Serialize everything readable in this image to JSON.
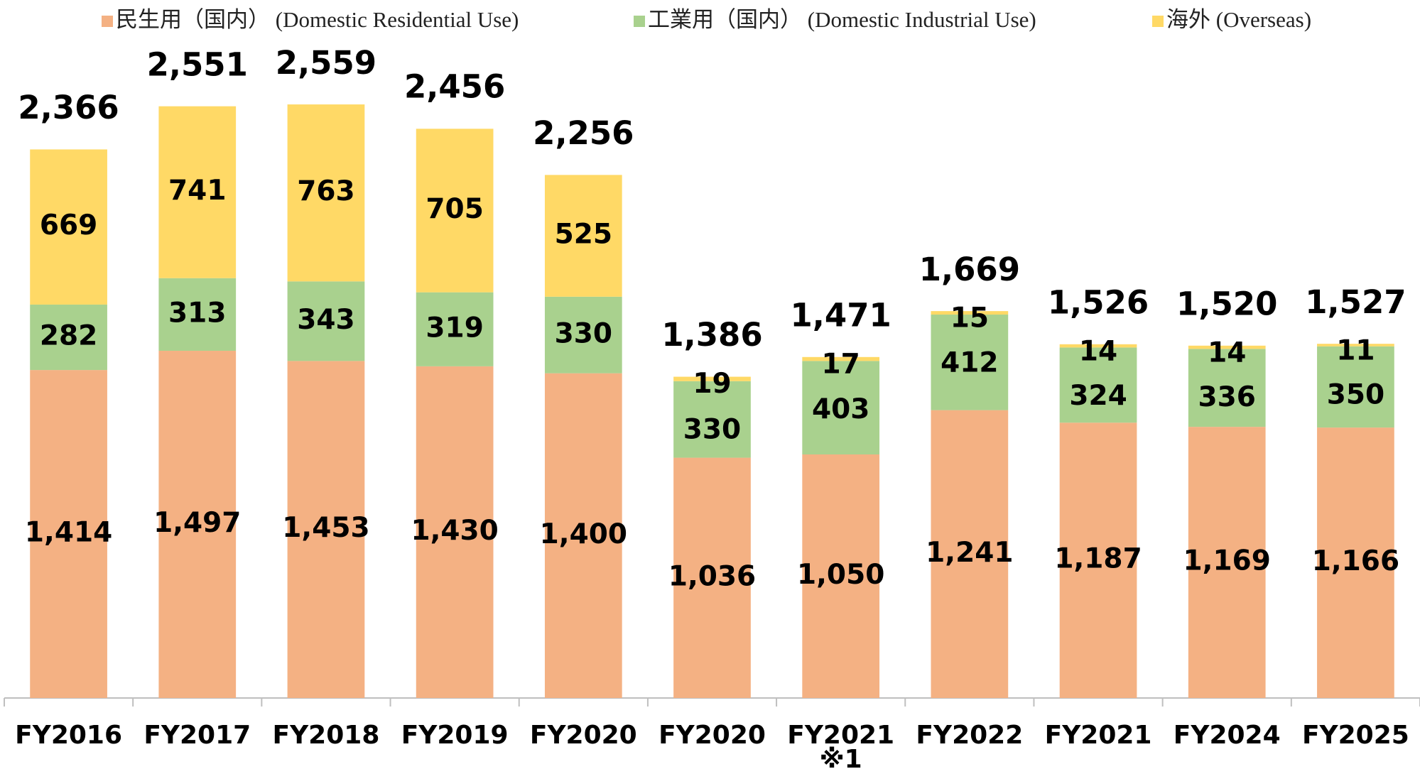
{
  "chart_data": {
    "type": "stacked_bar",
    "categories": [
      "FY2016",
      "FY2017",
      "FY2018",
      "FY2019",
      "FY2020",
      "FY2020",
      "FY2021",
      "FY2022",
      "FY2021",
      "FY2024",
      "FY2025"
    ],
    "category_notes": [
      null,
      null,
      null,
      null,
      null,
      null,
      "※1",
      null,
      null,
      null,
      null
    ],
    "series": [
      {
        "name": "民生用（国内） (Domestic Residential Use)",
        "color": "#f4b183",
        "values": [
          1414,
          1497,
          1453,
          1430,
          1400,
          1036,
          1050,
          1241,
          1187,
          1169,
          1166
        ],
        "value_labels": [
          "1,414",
          "1,497",
          "1,453",
          "1,430",
          "1,400",
          "1,036",
          "1,050",
          "1,241",
          "1,187",
          "1,169",
          "1,166"
        ]
      },
      {
        "name": "工業用（国内） (Domestic Industrial Use)",
        "color": "#a9d18e",
        "values": [
          282,
          313,
          343,
          319,
          330,
          330,
          403,
          412,
          324,
          336,
          350
        ]
      },
      {
        "name": "海外 (Overseas)",
        "color": "#ffd966",
        "values": [
          669,
          741,
          763,
          705,
          525,
          19,
          17,
          15,
          14,
          14,
          11
        ]
      }
    ],
    "totals": [
      2366,
      2551,
      2559,
      2456,
      2256,
      1386,
      1471,
      1669,
      1526,
      1520,
      1527
    ],
    "total_labels": [
      "2,366",
      "2,551",
      "2,559",
      "2,456",
      "2,256",
      "1,386",
      "1,471",
      "1,669",
      "1,526",
      "1,520",
      "1,527"
    ],
    "ylim": [
      0,
      3000
    ],
    "legend": "top"
  }
}
